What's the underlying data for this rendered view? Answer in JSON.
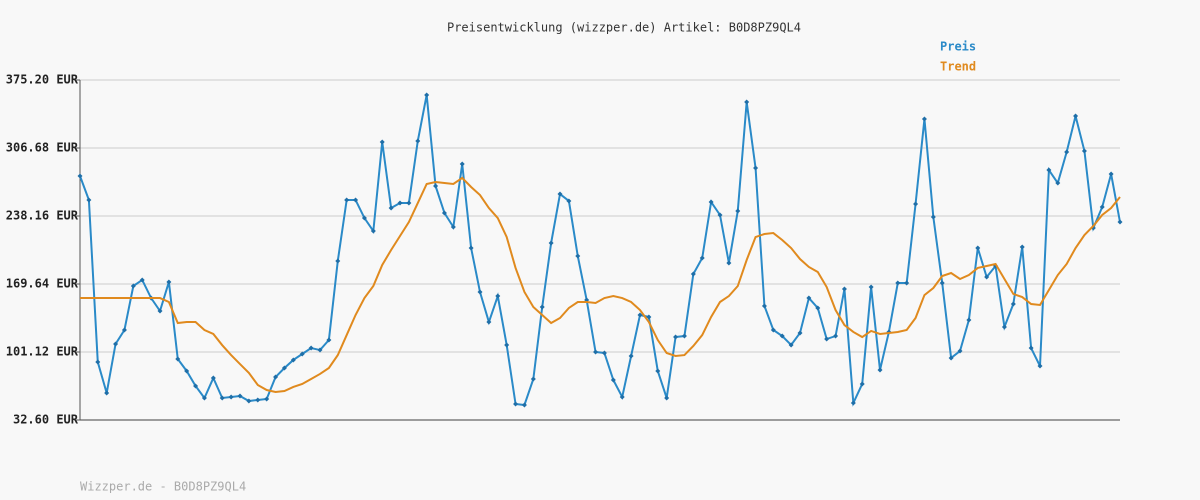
{
  "chart_data": {
    "type": "line",
    "title": "Preisentwicklung (wizzper.de) Artikel: B0D8PZ9QL4",
    "footer": "Wizzper.de - B0D8PZ9QL4",
    "ylim": [
      32.6,
      375.2
    ],
    "yticks": [
      {
        "value": 32.6,
        "label": "32.60 EUR"
      },
      {
        "value": 101.12,
        "label": "101.12 EUR"
      },
      {
        "value": 169.64,
        "label": "169.64 EUR"
      },
      {
        "value": 238.16,
        "label": "238.16 EUR"
      },
      {
        "value": 306.68,
        "label": "306.68 EUR"
      },
      {
        "value": 375.2,
        "label": "375.20 EUR"
      }
    ],
    "grid": true,
    "legend": "top-right",
    "series": [
      {
        "name": "Preis",
        "color": "#2a8ac8",
        "markers": true,
        "values": [
          278.5,
          254.3,
          91.0,
          59.8,
          109.2,
          123.3,
          167.6,
          173.7,
          155.5,
          142.4,
          171.7,
          94.1,
          82.0,
          66.9,
          54.8,
          74.9,
          54.8,
          55.8,
          56.8,
          51.7,
          52.8,
          53.8,
          75.9,
          85.0,
          93.1,
          99.1,
          105.1,
          103.1,
          113.2,
          192.8,
          254.3,
          254.3,
          236.1,
          223.0,
          312.7,
          246.2,
          251.2,
          251.2,
          313.7,
          360.1,
          268.4,
          241.2,
          227.1,
          290.5,
          205.9,
          161.6,
          131.3,
          157.5,
          108.2,
          48.7,
          47.7,
          73.9,
          146.5,
          210.9,
          260.3,
          253.3,
          197.8,
          153.5,
          101.1,
          100.1,
          72.9,
          55.8,
          97.1,
          138.4,
          136.4,
          82.0,
          54.8,
          116.2,
          117.2,
          179.7,
          195.8,
          252.3,
          239.2,
          190.8,
          243.2,
          353.0,
          286.5,
          147.5,
          123.3,
          117.2,
          108.2,
          120.3,
          155.5,
          145.5,
          114.2,
          117.2,
          164.6,
          49.7,
          68.9,
          166.6,
          83.0,
          121.3,
          170.6,
          170.6,
          250.2,
          335.9,
          237.1,
          170.6,
          95.1,
          102.1,
          133.4,
          205.9,
          176.7,
          187.8,
          126.3,
          149.5,
          206.9,
          105.1,
          87.0,
          284.5,
          271.4,
          302.6,
          338.9,
          303.6,
          226.1,
          247.2,
          280.5,
          232.1
        ]
      },
      {
        "name": "Trend",
        "color": "#e08a1e",
        "markers": false,
        "values": [
          155.5,
          155.5,
          155.5,
          155.5,
          155.5,
          155.5,
          155.5,
          155.5,
          155.5,
          155.5,
          151.5,
          130.3,
          131.3,
          131.3,
          123.3,
          119.3,
          108.0,
          98.0,
          89.0,
          80.0,
          67.9,
          62.8,
          60.8,
          61.8,
          65.9,
          68.9,
          73.9,
          79.0,
          85.0,
          98.0,
          118.2,
          138.4,
          155.5,
          167.6,
          188.8,
          203.9,
          218.0,
          232.1,
          251.2,
          270.4,
          272.4,
          271.4,
          270.4,
          276.5,
          267.4,
          259.3,
          246.2,
          236.1,
          217.0,
          185.8,
          161.6,
          146.5,
          138.4,
          130.3,
          135.4,
          145.5,
          151.5,
          151.5,
          150.5,
          155.5,
          157.5,
          155.5,
          151.5,
          143.4,
          131.3,
          113.2,
          100.1,
          97.1,
          98.0,
          107.2,
          118.2,
          136.4,
          151.5,
          157.5,
          167.6,
          193.8,
          217.0,
          220.0,
          221.0,
          214.0,
          205.9,
          194.8,
          186.8,
          181.7,
          166.6,
          143.4,
          128.3,
          121.3,
          116.2,
          122.3,
          119.3,
          120.3,
          121.3,
          123.3,
          135.4,
          158.5,
          165.6,
          177.7,
          180.7,
          174.7,
          178.7,
          185.8,
          187.8,
          189.8,
          174.7,
          159.6,
          156.5,
          149.5,
          148.5,
          163.6,
          178.7,
          189.8,
          205.9,
          219.0,
          228.1,
          239.2,
          246.2,
          257.3
        ]
      }
    ]
  }
}
